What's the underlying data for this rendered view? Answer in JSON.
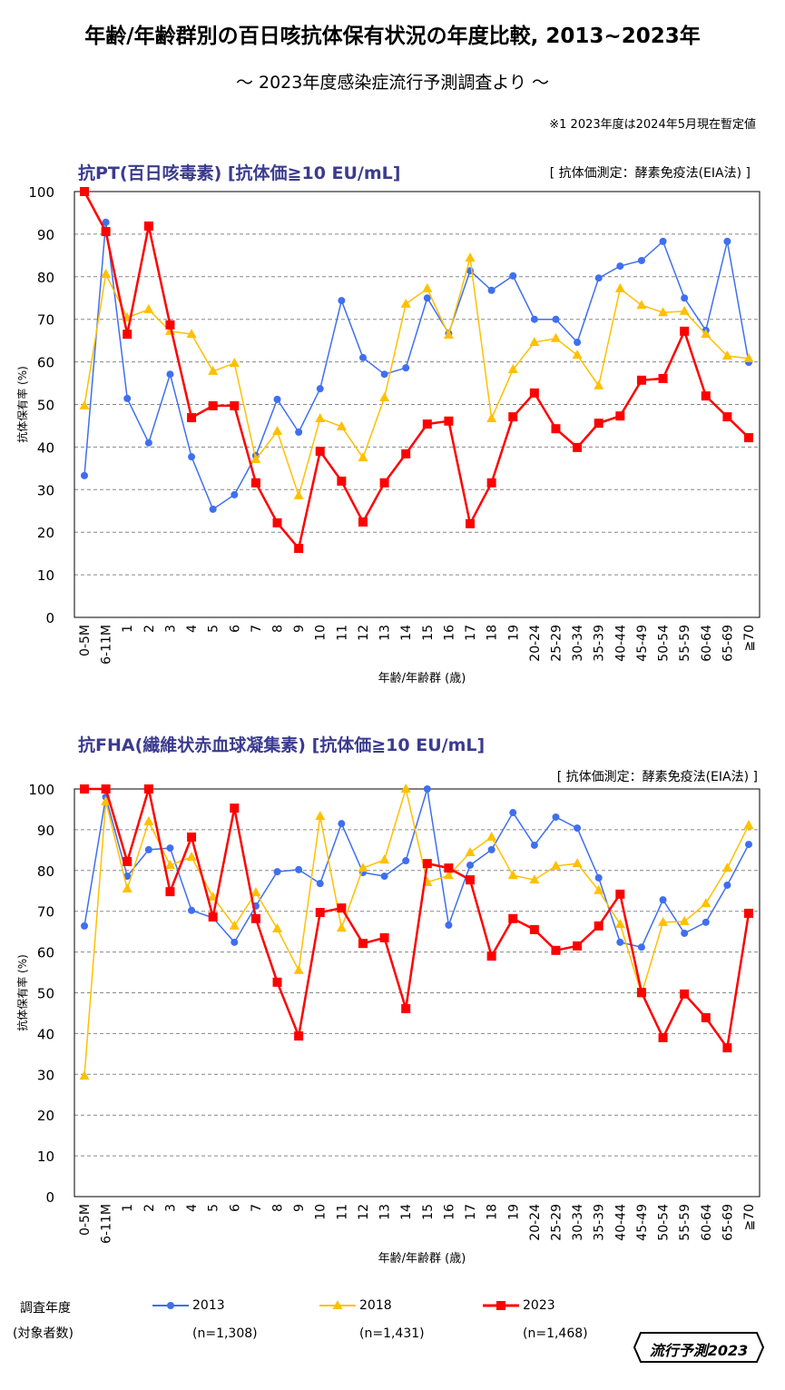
{
  "title": "年齢/年齢群別の百日咳抗体保有状況の年度比較, 2013~2023年",
  "subtitle": "～ 2023年度感染症流行予測調査より ～",
  "note": "※1  2023年度は2024年5月現在暫定値",
  "legend": {
    "heading": "調査年度",
    "subheading": "(対象者数)",
    "entries": [
      {
        "name": "2013",
        "n": "(n=1,308)",
        "color": "#3f6ff0",
        "marker": "circle"
      },
      {
        "name": "2018",
        "n": "(n=1,431)",
        "color": "#ffc000",
        "marker": "triangle"
      },
      {
        "name": "2023",
        "n": "(n=1,468)",
        "color": "#ff0000",
        "marker": "square"
      }
    ]
  },
  "logo": {
    "text": "流行予測2023"
  },
  "chart_data": [
    {
      "type": "line",
      "title": "抗PT(百日咳毒素) [抗体価≧10 EU/mL]",
      "method": "[ 抗体価測定：酵素免疫法(EIA法) ]",
      "xlabel": "年齢/年齢群 (歳)",
      "ylabel": "抗体保有率 (%)",
      "ylim": [
        0,
        100
      ],
      "yticks": [
        0,
        10,
        20,
        30,
        40,
        50,
        60,
        70,
        80,
        90,
        100
      ],
      "grid": true,
      "categories": [
        "0-5M",
        "6-11M",
        "1",
        "2",
        "3",
        "4",
        "5",
        "6",
        "7",
        "8",
        "9",
        "10",
        "11",
        "12",
        "13",
        "14",
        "15",
        "16",
        "17",
        "18",
        "19",
        "20-24",
        "25-29",
        "30-34",
        "35-39",
        "40-44",
        "45-49",
        "50-54",
        "55-59",
        "60-64",
        "65-69",
        "≧70"
      ],
      "series": [
        {
          "name": "2013",
          "values": [
            33.3,
            92.8,
            51.4,
            41.0,
            57.1,
            37.7,
            25.4,
            28.8,
            38.0,
            51.2,
            43.5,
            53.7,
            74.4,
            61.0,
            57.1,
            58.6,
            75.0,
            66.7,
            81.4,
            76.8,
            80.2,
            70.0,
            70.0,
            64.6,
            79.7,
            82.5,
            83.8,
            88.3,
            75.0,
            67.4,
            88.3,
            59.9
          ]
        },
        {
          "name": "2018",
          "values": [
            49.7,
            80.6,
            70.4,
            72.3,
            67.2,
            66.5,
            57.8,
            59.7,
            37.1,
            43.7,
            28.6,
            46.7,
            44.8,
            37.5,
            51.6,
            73.6,
            77.2,
            66.3,
            84.4,
            46.7,
            58.2,
            64.6,
            65.5,
            61.6,
            54.4,
            77.2,
            73.3,
            71.6,
            71.9,
            66.5,
            61.4,
            60.8
          ]
        },
        {
          "name": "2023",
          "values": [
            100,
            90.6,
            66.5,
            91.9,
            68.7,
            46.9,
            49.7,
            49.7,
            31.6,
            22.2,
            16.2,
            39.0,
            32.0,
            22.4,
            31.6,
            38.4,
            45.4,
            46.1,
            22.0,
            31.6,
            47.1,
            52.7,
            44.3,
            39.9,
            45.6,
            47.3,
            55.7,
            56.1,
            67.2,
            52.0,
            47.1,
            42.2
          ]
        }
      ]
    },
    {
      "type": "line",
      "title": "抗FHA(繊維状赤血球凝集素) [抗体価≧10 EU/mL]",
      "method": "[ 抗体価測定：酵素免疫法(EIA法) ]",
      "xlabel": "年齢/年齢群 (歳)",
      "ylabel": "抗体保有率 (%)",
      "ylim": [
        0,
        100
      ],
      "yticks": [
        0,
        10,
        20,
        30,
        40,
        50,
        60,
        70,
        80,
        90,
        100
      ],
      "grid": true,
      "categories": [
        "0-5M",
        "6-11M",
        "1",
        "2",
        "3",
        "4",
        "5",
        "6",
        "7",
        "8",
        "9",
        "10",
        "11",
        "12",
        "13",
        "14",
        "15",
        "16",
        "17",
        "18",
        "19",
        "20-24",
        "25-29",
        "30-34",
        "35-39",
        "40-44",
        "45-49",
        "50-54",
        "55-59",
        "60-64",
        "65-69",
        "≧70"
      ],
      "series": [
        {
          "name": "2013",
          "values": [
            66.4,
            98.0,
            78.6,
            85.1,
            85.5,
            70.2,
            68.4,
            62.4,
            71.3,
            79.7,
            80.2,
            76.8,
            91.5,
            79.5,
            78.6,
            82.4,
            100,
            66.6,
            81.3,
            85.1,
            94.2,
            86.2,
            93.1,
            90.4,
            78.2,
            62.4,
            61.2,
            72.8,
            64.6,
            67.3,
            76.4,
            86.4
          ]
        },
        {
          "name": "2018",
          "values": [
            29.6,
            96.9,
            75.5,
            92.0,
            81.3,
            83.3,
            73.5,
            66.4,
            74.6,
            65.7,
            55.5,
            93.3,
            65.9,
            80.6,
            82.6,
            100,
            77.1,
            78.8,
            84.4,
            88.2,
            78.8,
            77.7,
            81.1,
            81.7,
            75.1,
            66.8,
            49.7,
            67.3,
            67.5,
            71.9,
            80.6,
            91.1
          ]
        },
        {
          "name": "2023",
          "values": [
            100,
            100,
            82.2,
            100,
            74.8,
            88.2,
            68.6,
            95.3,
            68.2,
            52.6,
            39.4,
            69.7,
            70.8,
            62.1,
            63.5,
            46.1,
            81.7,
            80.6,
            77.7,
            59.0,
            68.2,
            65.5,
            60.4,
            61.5,
            66.4,
            74.2,
            50.1,
            39.0,
            49.7,
            43.9,
            36.5,
            69.5
          ]
        }
      ]
    }
  ]
}
